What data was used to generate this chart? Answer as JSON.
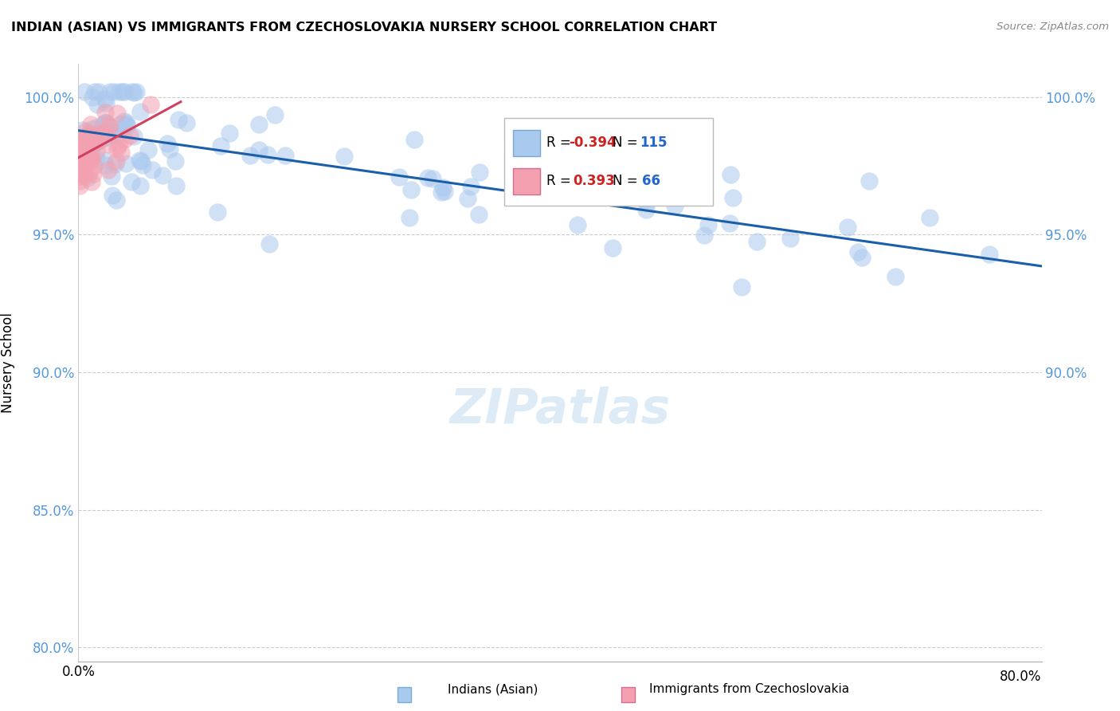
{
  "title": "INDIAN (ASIAN) VS IMMIGRANTS FROM CZECHOSLOVAKIA NURSERY SCHOOL CORRELATION CHART",
  "source": "Source: ZipAtlas.com",
  "ylabel": "Nursery School",
  "legend_blue_label": "Indians (Asian)",
  "legend_pink_label": "Immigrants from Czechoslovakia",
  "R_blue": -0.394,
  "N_blue": 115,
  "R_pink": 0.393,
  "N_pink": 66,
  "blue_color": "#aac9ee",
  "pink_color": "#f4a0b0",
  "blue_line_color": "#1a5fa8",
  "pink_line_color": "#d04060",
  "xlim": [
    0.0,
    0.8
  ],
  "ylim": [
    0.795,
    1.012
  ],
  "ytick_values": [
    0.8,
    0.85,
    0.9,
    0.95,
    1.0
  ],
  "ytick_labels": [
    "80.0%",
    "85.0%",
    "90.0%",
    "95.0%",
    "100.0%"
  ],
  "right_ytick_values": [
    0.9,
    0.95,
    1.0
  ],
  "right_ytick_labels": [
    "90.0%",
    "95.0%",
    "100.0%"
  ],
  "xtick_left_label": "0.0%",
  "xtick_right_label": "80.0%"
}
